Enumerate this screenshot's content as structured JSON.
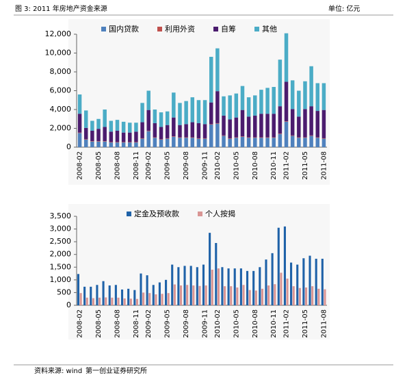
{
  "header": {
    "title": "图 3: 2011 年房地产资金来源",
    "unit": "单位: 亿元"
  },
  "footer": {
    "source": "资料来源: wind",
    "org": "第一创业证券研究所"
  },
  "chart_data": [
    {
      "type": "bar",
      "stacked": true,
      "categories": [
        "2008-02",
        null,
        null,
        "2008-05",
        null,
        null,
        "2008-08",
        null,
        null,
        "2008-11",
        null,
        "2009-02",
        null,
        null,
        "2009-05",
        null,
        null,
        "2009-08",
        null,
        null,
        "2009-11",
        null,
        "2010-02",
        null,
        null,
        "2010-05",
        null,
        null,
        "2010-08",
        null,
        null,
        "2010-11",
        null,
        "2011-02",
        null,
        null,
        "2011-05",
        null,
        null,
        "2011-08"
      ],
      "series": [
        {
          "name": "国内贷款",
          "color": "#4f81bd",
          "values": [
            1500,
            800,
            600,
            600,
            600,
            500,
            500,
            500,
            500,
            500,
            900,
            1700,
            1000,
            800,
            900,
            1100,
            1000,
            1000,
            1000,
            900,
            900,
            2400,
            2500,
            1200,
            900,
            1000,
            1100,
            1000,
            1000,
            1000,
            1000,
            1000,
            1400,
            2700,
            1200,
            1000,
            1000,
            1200,
            1000,
            900
          ]
        },
        {
          "name": "利用外资",
          "color": "#c0504d",
          "values": [
            50,
            50,
            50,
            50,
            50,
            50,
            50,
            50,
            50,
            50,
            50,
            50,
            50,
            50,
            50,
            50,
            50,
            50,
            50,
            50,
            50,
            50,
            50,
            50,
            50,
            50,
            50,
            50,
            50,
            50,
            50,
            50,
            50,
            50,
            50,
            50,
            50,
            50,
            50,
            50
          ]
        },
        {
          "name": "自筹",
          "color": "#4b1c6e",
          "values": [
            2000,
            1200,
            1100,
            1300,
            1500,
            1100,
            1200,
            1000,
            1000,
            1100,
            1700,
            2200,
            1500,
            1300,
            1400,
            2000,
            1300,
            1400,
            1600,
            1600,
            1500,
            2300,
            3400,
            2100,
            2000,
            2100,
            2800,
            2200,
            2300,
            2500,
            2500,
            2500,
            2900,
            4200,
            2800,
            2200,
            3000,
            3100,
            2800,
            3000
          ]
        },
        {
          "name": "其他",
          "color": "#4bacc6",
          "values": [
            2050,
            1850,
            1050,
            1050,
            1850,
            1150,
            1150,
            1150,
            1050,
            950,
            2050,
            2050,
            1450,
            1550,
            1450,
            2650,
            2350,
            2450,
            2650,
            2450,
            2550,
            4850,
            4550,
            2050,
            2550,
            2550,
            2550,
            2050,
            2150,
            2550,
            2750,
            2850,
            4950,
            5150,
            3050,
            2750,
            2950,
            4250,
            2950,
            2850
          ]
        }
      ],
      "ylim": [
        0,
        12000
      ],
      "yticks": [
        0,
        {
          "value": 2000,
          "label": "2,000"
        },
        {
          "value": 4000,
          "label": "4,000"
        },
        {
          "value": 6000,
          "label": "6,000"
        },
        {
          "value": 8000,
          "label": "8,000"
        },
        {
          "value": 10000,
          "label": "10,000"
        },
        {
          "value": 12000,
          "label": "12,000"
        }
      ]
    },
    {
      "type": "bar",
      "stacked": false,
      "categories": [
        "2008-02",
        null,
        null,
        "2008-05",
        null,
        null,
        "2008-08",
        null,
        null,
        "2008-11",
        null,
        "2009-02",
        null,
        null,
        "2009-05",
        null,
        null,
        "2009-08",
        null,
        null,
        "2009-11",
        null,
        "2010-02",
        null,
        null,
        "2010-05",
        null,
        null,
        "2010-08",
        null,
        null,
        "2010-11",
        null,
        "2011-02",
        null,
        null,
        "2011-05",
        null,
        null,
        "2011-08"
      ],
      "series": [
        {
          "name": "定金及预收款",
          "color": "#1f62a8",
          "values": [
            1230,
            730,
            730,
            800,
            950,
            780,
            800,
            620,
            650,
            600,
            1250,
            1180,
            800,
            900,
            1000,
            1600,
            1500,
            1550,
            1550,
            1500,
            1600,
            2850,
            2450,
            1500,
            1450,
            1450,
            1450,
            1350,
            1350,
            1500,
            1800,
            2050,
            3050,
            3100,
            1680,
            1600,
            1850,
            1950,
            1830,
            1830
          ]
        },
        {
          "name": "个人按揭",
          "color": "#d99594",
          "values": [
            480,
            300,
            280,
            300,
            310,
            300,
            300,
            270,
            260,
            250,
            500,
            480,
            430,
            450,
            480,
            820,
            780,
            800,
            780,
            760,
            780,
            1400,
            1450,
            750,
            750,
            700,
            800,
            600,
            580,
            650,
            780,
            830,
            1280,
            1050,
            750,
            680,
            700,
            750,
            650,
            630
          ]
        }
      ],
      "ylim": [
        0,
        3500
      ],
      "yticks": [
        0,
        500,
        {
          "value": 1000,
          "label": "1,000"
        },
        {
          "value": 1500,
          "label": "1,500"
        },
        {
          "value": 2000,
          "label": "2,000"
        },
        {
          "value": 2500,
          "label": "2,500"
        },
        {
          "value": 3000,
          "label": "3,000"
        },
        {
          "value": 3500,
          "label": "3,500"
        }
      ]
    }
  ]
}
